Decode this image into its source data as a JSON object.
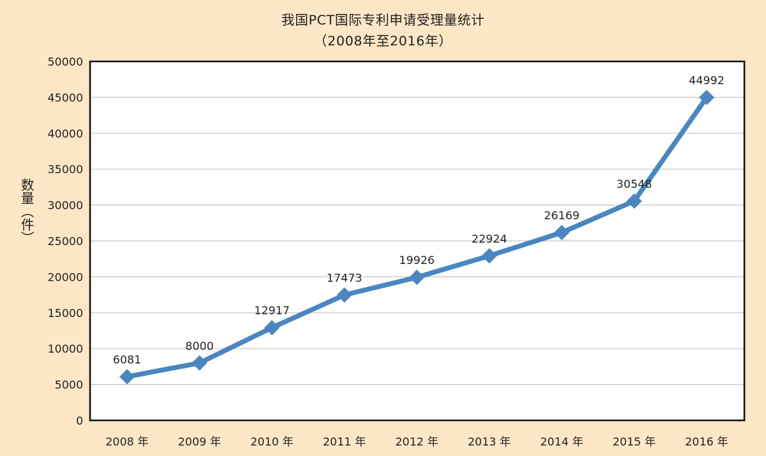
{
  "chart_data": {
    "type": "line",
    "title": "我国PCT国际专利申请受理量统计",
    "subtitle": "（2008年至2016年）",
    "ylabel": "数量（件）",
    "xlabel": "",
    "categories": [
      "2008 年",
      "2009 年",
      "2010 年",
      "2011 年",
      "2012 年",
      "2013 年",
      "2014 年",
      "2015 年",
      "2016 年"
    ],
    "series": [
      {
        "values": [
          6081,
          8000,
          12917,
          17473,
          19926,
          22924,
          26169,
          30548,
          44992
        ],
        "color": "#4a86c0"
      }
    ],
    "data_labels": [
      "6081",
      "8000",
      "12917",
      "17473",
      "19926",
      "22924",
      "26169",
      "30548",
      "44992"
    ],
    "ylim": [
      0,
      50000
    ],
    "y_ticks": [
      0,
      5000,
      10000,
      15000,
      20000,
      25000,
      30000,
      35000,
      40000,
      45000,
      50000
    ],
    "y_tick_labels": [
      "0",
      "5000",
      "10000",
      "15000",
      "20000",
      "25000",
      "30000",
      "35000",
      "40000",
      "45000",
      "50000"
    ],
    "grid": true,
    "marker": "diamond"
  },
  "colors": {
    "background": "#fde7c6",
    "plot_background": "#ffffff",
    "line": "#4a86c0",
    "grid": "#c8c8c8",
    "frame": "#1a1a1a"
  }
}
